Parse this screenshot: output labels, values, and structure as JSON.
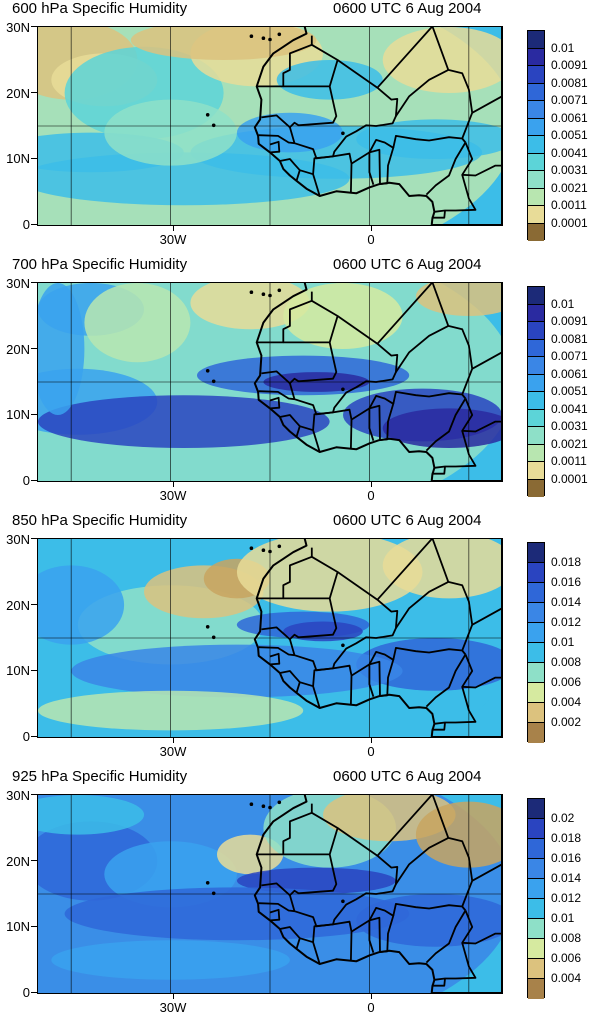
{
  "panels": [
    {
      "title": "600 hPa Specific Humidity",
      "time": "0600 UTC 6 Aug 2004",
      "colorbar_labels": [
        "0.01",
        "0.0091",
        "0.0081",
        "0.0071",
        "0.0061",
        "0.0051",
        "0.0041",
        "0.0031",
        "0.0021",
        "0.0011",
        "0.0001"
      ]
    },
    {
      "title": "700 hPa Specific Humidity",
      "time": "0600 UTC 6 Aug 2004",
      "colorbar_labels": [
        "0.01",
        "0.0091",
        "0.0081",
        "0.0071",
        "0.0061",
        "0.0051",
        "0.0041",
        "0.0031",
        "0.0021",
        "0.0011",
        "0.0001"
      ]
    },
    {
      "title": "850 hPa Specific Humidity",
      "time": "0600 UTC 6 Aug 2004",
      "colorbar_labels": [
        "0.018",
        "0.016",
        "0.014",
        "0.012",
        "0.01",
        "0.008",
        "0.006",
        "0.004",
        "0.002"
      ]
    },
    {
      "title": "925 hPa Specific Humidity",
      "time": "0600 UTC 6 Aug 2004",
      "colorbar_labels": [
        "0.02",
        "0.018",
        "0.016",
        "0.014",
        "0.012",
        "0.01",
        "0.008",
        "0.006",
        "0.004"
      ]
    }
  ],
  "axes": {
    "lat_labels": [
      "30N",
      "20N",
      "10N",
      "0"
    ],
    "lon_labels": [
      "30W",
      "0"
    ]
  },
  "colors": {
    "palette": [
      "#8a6a34",
      "#a8824a",
      "#c8a560",
      "#dcc27e",
      "#e8dc98",
      "#d6eaa0",
      "#b8e6b0",
      "#8ee0c8",
      "#5cd4d8",
      "#3cbde8",
      "#3aa2ee",
      "#3a86e6",
      "#2f67d8",
      "#2a44c0",
      "#2a2aa0",
      "#1c2a78"
    ]
  }
}
